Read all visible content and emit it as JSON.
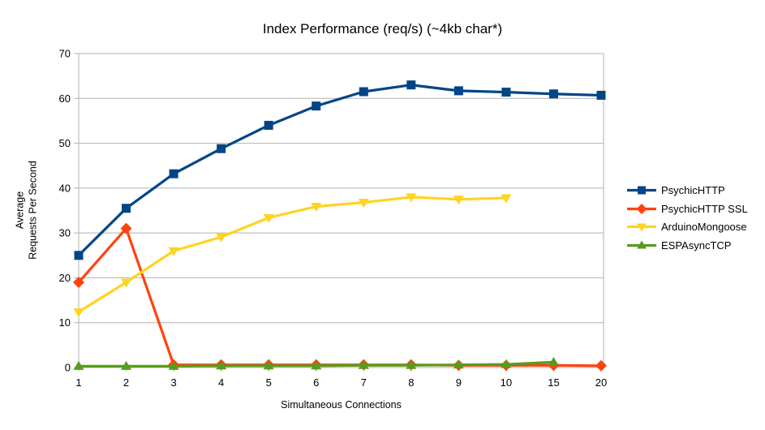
{
  "title": "Index Performance (req/s) (~4kb char*)",
  "chart_data": {
    "type": "line",
    "title": "Index Performance (req/s) (~4kb char*)",
    "xlabel": "Simultaneous Connections",
    "ylabel": "Average\nRequests Per Second",
    "categories": [
      "1",
      "2",
      "3",
      "4",
      "5",
      "6",
      "7",
      "8",
      "9",
      "10",
      "15",
      "20"
    ],
    "ylim": [
      0,
      70
    ],
    "ytick_step": 10,
    "grid": "horizontal",
    "legend_position": "right",
    "series": [
      {
        "name": "PsychicHTTP",
        "color": "#004586",
        "marker": "square",
        "values": [
          25.0,
          35.5,
          43.2,
          48.8,
          54.0,
          58.3,
          61.5,
          63.0,
          61.7,
          61.4,
          61.0,
          60.7
        ]
      },
      {
        "name": "PsychicHTTP SSL",
        "color": "#FF420E",
        "marker": "diamond",
        "values": [
          19.0,
          31.0,
          0.6,
          0.6,
          0.6,
          0.6,
          0.6,
          0.6,
          0.5,
          0.5,
          0.5,
          0.4
        ]
      },
      {
        "name": "ArduinoMongoose",
        "color": "#FFD320",
        "marker": "triangle-down",
        "values": [
          12.4,
          19.0,
          26.0,
          29.1,
          33.4,
          35.9,
          36.8,
          38.0,
          37.5,
          37.8,
          null,
          null
        ]
      },
      {
        "name": "ESPAsyncTCP",
        "color": "#579D1C",
        "marker": "triangle-up",
        "values": [
          0.3,
          0.3,
          0.3,
          0.4,
          0.4,
          0.4,
          0.5,
          0.5,
          0.6,
          0.7,
          1.2,
          null
        ]
      }
    ],
    "colors": {
      "grid": "#B3B3B3",
      "axis": "#B3B3B3",
      "text": "#000000",
      "background": "#FFFFFF"
    }
  }
}
